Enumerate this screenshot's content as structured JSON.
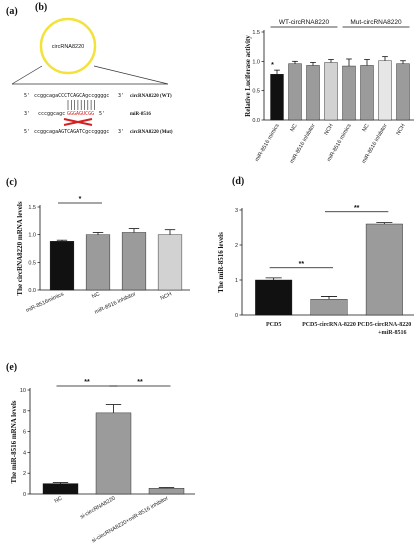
{
  "panels": {
    "a": {
      "label": "(a)",
      "circle_label": "circRNA8220",
      "rows": [
        {
          "prefix": "5'",
          "left": "ccggcagaCCCTCAGCAgccggggc",
          "hl": "",
          "right": "",
          "suffix": "3'",
          "name": "circRNA8220 (WT)"
        },
        {
          "prefix": "3'",
          "left": "cccggcagc",
          "hl": "GGGAGUCGG",
          "right": "",
          "suffix": "5'",
          "name": "miR-8516"
        },
        {
          "prefix": "5'",
          "left": "ccggcagaAGTCAGATCgccggggc",
          "hl": "",
          "right": "",
          "suffix": "3'",
          "name": "circRNA8220 (Mut)"
        }
      ],
      "highlight_color": "#d42020"
    }
  },
  "chart_data": [
    {
      "id": "b",
      "label": "(b)",
      "type": "bar",
      "ylabel": "Relative Luciferase activity",
      "ylim": [
        0,
        1.5
      ],
      "yticks": [
        0.0,
        0.5,
        1.0,
        1.5
      ],
      "groups": [
        "WT-circRNA8220",
        "Mut-circRNA8220"
      ],
      "categories": [
        "miR-8516 mimics",
        "NC",
        "miR-8516 inhibitor",
        "NCH",
        "miR-8516 mimics",
        "NC",
        "miR-8516 inhibitor",
        "NCH"
      ],
      "values": [
        0.78,
        0.96,
        0.93,
        0.98,
        0.92,
        0.93,
        1.01,
        0.96
      ],
      "errors": [
        0.07,
        0.04,
        0.05,
        0.05,
        0.12,
        0.1,
        0.07,
        0.05
      ],
      "colors": [
        "#111111",
        "#9b9b9b",
        "#9b9b9b",
        "#d2d2d2",
        "#9b9b9b",
        "#9b9b9b",
        "#e6e6e6",
        "#9b9b9b"
      ],
      "annotations": [
        {
          "text": "*",
          "bar": 0
        }
      ]
    },
    {
      "id": "c",
      "label": "(c)",
      "type": "bar",
      "ylabel": "The circRNA8220 mRNA levels",
      "ylim": [
        0,
        1.5
      ],
      "yticks": [
        0.0,
        0.5,
        1.0,
        1.5
      ],
      "categories": [
        "miR-8516mimics",
        "NC",
        "miR-8516 inhibitor",
        "NCH"
      ],
      "values": [
        0.88,
        1.0,
        1.04,
        1.0
      ],
      "errors": [
        0.02,
        0.04,
        0.07,
        0.09
      ],
      "colors": [
        "#111111",
        "#9b9b9b",
        "#9b9b9b",
        "#d2d2d2"
      ],
      "brackets": [
        {
          "from": 0,
          "to": 1,
          "text": "*"
        }
      ]
    },
    {
      "id": "d",
      "label": "(d)",
      "type": "bar",
      "ylabel": "The miR-8516 levels",
      "ylim": [
        0,
        3
      ],
      "yticks": [
        0,
        1,
        2,
        3
      ],
      "categories": [
        "PCD5",
        "PCD5-circRNA-8220",
        "PCD5-circRNA-8220 +miR-8516"
      ],
      "values": [
        1.0,
        0.45,
        2.6
      ],
      "errors": [
        0.06,
        0.08,
        0.04
      ],
      "colors": [
        "#111111",
        "#9b9b9b",
        "#9b9b9b"
      ],
      "brackets": [
        {
          "from": 0,
          "to": 1,
          "text": "**"
        },
        {
          "from": 1,
          "to": 2,
          "text": "**"
        }
      ]
    },
    {
      "id": "e",
      "label": "(e)",
      "type": "bar",
      "ylabel": "The miR-8516 mRNA levels",
      "ylim": [
        0,
        10
      ],
      "yticks": [
        0,
        2,
        4,
        6,
        8,
        10
      ],
      "categories": [
        "NC",
        "si-ciecRNA8220",
        "si-ciecRNA8220+miR-8516 inhibitor"
      ],
      "values": [
        1.0,
        7.8,
        0.55
      ],
      "errors": [
        0.1,
        0.8,
        0.07
      ],
      "colors": [
        "#111111",
        "#9b9b9b",
        "#9b9b9b"
      ],
      "brackets": [
        {
          "from": 0,
          "to": 1,
          "text": "**"
        },
        {
          "from": 1,
          "to": 2,
          "text": "**"
        }
      ]
    }
  ]
}
